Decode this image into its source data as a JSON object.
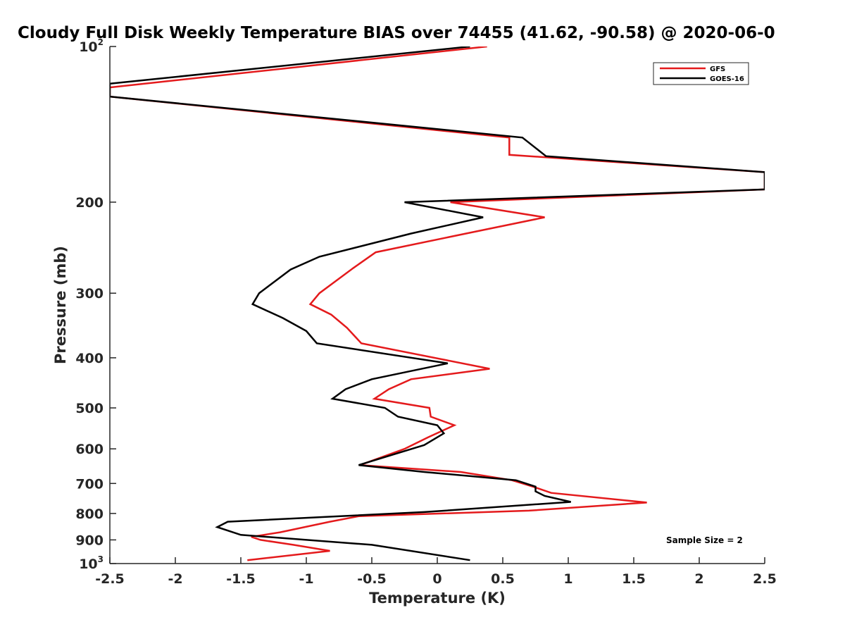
{
  "chart_data": {
    "type": "line",
    "title": "Cloudy Full Disk Weekly Temperature BIAS over 74455 (41.62, -90.58) @ 2020-06-0",
    "xlabel": "Temperature (K)",
    "ylabel": "Pressure (mb)",
    "xlim": [
      -2.5,
      2.5
    ],
    "ylim": [
      100,
      1000
    ],
    "y_scale": "log",
    "y_reversed": true,
    "grid": false,
    "legend_position": "top-right",
    "x_ticks": [
      "-2.5",
      "-2",
      "-1.5",
      "-1",
      "-0.5",
      "0",
      "0.5",
      "1",
      "1.5",
      "2",
      "2.5"
    ],
    "y_ticks": [
      {
        "value": 100,
        "base": "10",
        "exp": "2"
      },
      {
        "value": 200,
        "label": "200"
      },
      {
        "value": 300,
        "label": "300"
      },
      {
        "value": 400,
        "label": "400"
      },
      {
        "value": 500,
        "label": "500"
      },
      {
        "value": 600,
        "label": "600"
      },
      {
        "value": 700,
        "label": "700"
      },
      {
        "value": 800,
        "label": "800"
      },
      {
        "value": 900,
        "label": "900"
      },
      {
        "value": 1000,
        "base": "10",
        "exp": "3"
      }
    ],
    "annotation": "Sample Size = 2",
    "series": [
      {
        "name": "GFS",
        "color": "#e41a1c",
        "points": [
          [
            0.38,
            100
          ],
          [
            -2.5,
            120
          ],
          [
            -2.5,
            125
          ],
          [
            0.55,
            150
          ],
          [
            0.55,
            162
          ],
          [
            2.5,
            175
          ],
          [
            2.5,
            189
          ],
          [
            0.1,
            200
          ],
          [
            0.82,
            214
          ],
          [
            0.22,
            230
          ],
          [
            -0.47,
            250
          ],
          [
            -0.64,
            268
          ],
          [
            -0.9,
            300
          ],
          [
            -0.97,
            315
          ],
          [
            -0.81,
            330
          ],
          [
            -0.69,
            350
          ],
          [
            -0.58,
            375
          ],
          [
            0.4,
            420
          ],
          [
            -0.2,
            440
          ],
          [
            -0.37,
            460
          ],
          [
            -0.48,
            480
          ],
          [
            -0.06,
            500
          ],
          [
            -0.05,
            520
          ],
          [
            0.13,
            540
          ],
          [
            -0.07,
            570
          ],
          [
            -0.25,
            600
          ],
          [
            -0.59,
            645
          ],
          [
            0.18,
            665
          ],
          [
            0.57,
            690
          ],
          [
            0.73,
            710
          ],
          [
            0.87,
            730
          ],
          [
            1.6,
            762
          ],
          [
            0.7,
            790
          ],
          [
            -0.6,
            810
          ],
          [
            -0.82,
            830
          ],
          [
            -1.2,
            870
          ],
          [
            -1.42,
            888
          ],
          [
            -1.35,
            900
          ],
          [
            -1.1,
            920
          ],
          [
            -0.82,
            945
          ],
          [
            -1.45,
            985
          ]
        ]
      },
      {
        "name": "GOES-16",
        "color": "#000000",
        "points": [
          [
            0.25,
            100
          ],
          [
            -2.5,
            118
          ],
          [
            -2.5,
            125
          ],
          [
            0.65,
            150
          ],
          [
            0.83,
            163
          ],
          [
            2.5,
            175
          ],
          [
            2.5,
            189
          ],
          [
            -0.25,
            200
          ],
          [
            0.35,
            214
          ],
          [
            -0.2,
            230
          ],
          [
            -0.9,
            255
          ],
          [
            -1.12,
            270
          ],
          [
            -1.36,
            300
          ],
          [
            -1.41,
            315
          ],
          [
            -1.18,
            335
          ],
          [
            -1.0,
            355
          ],
          [
            -0.92,
            375
          ],
          [
            0.08,
            410
          ],
          [
            -0.5,
            440
          ],
          [
            -0.7,
            460
          ],
          [
            -0.8,
            480
          ],
          [
            -0.4,
            500
          ],
          [
            -0.3,
            520
          ],
          [
            0.0,
            540
          ],
          [
            0.05,
            560
          ],
          [
            -0.1,
            590
          ],
          [
            -0.6,
            645
          ],
          [
            -0.1,
            665
          ],
          [
            0.6,
            690
          ],
          [
            0.75,
            710
          ],
          [
            0.75,
            725
          ],
          [
            0.82,
            740
          ],
          [
            1.02,
            760
          ],
          [
            -0.1,
            795
          ],
          [
            -1.6,
            830
          ],
          [
            -1.68,
            850
          ],
          [
            -1.5,
            880
          ],
          [
            -0.5,
            920
          ],
          [
            0.25,
            985
          ]
        ]
      }
    ]
  }
}
